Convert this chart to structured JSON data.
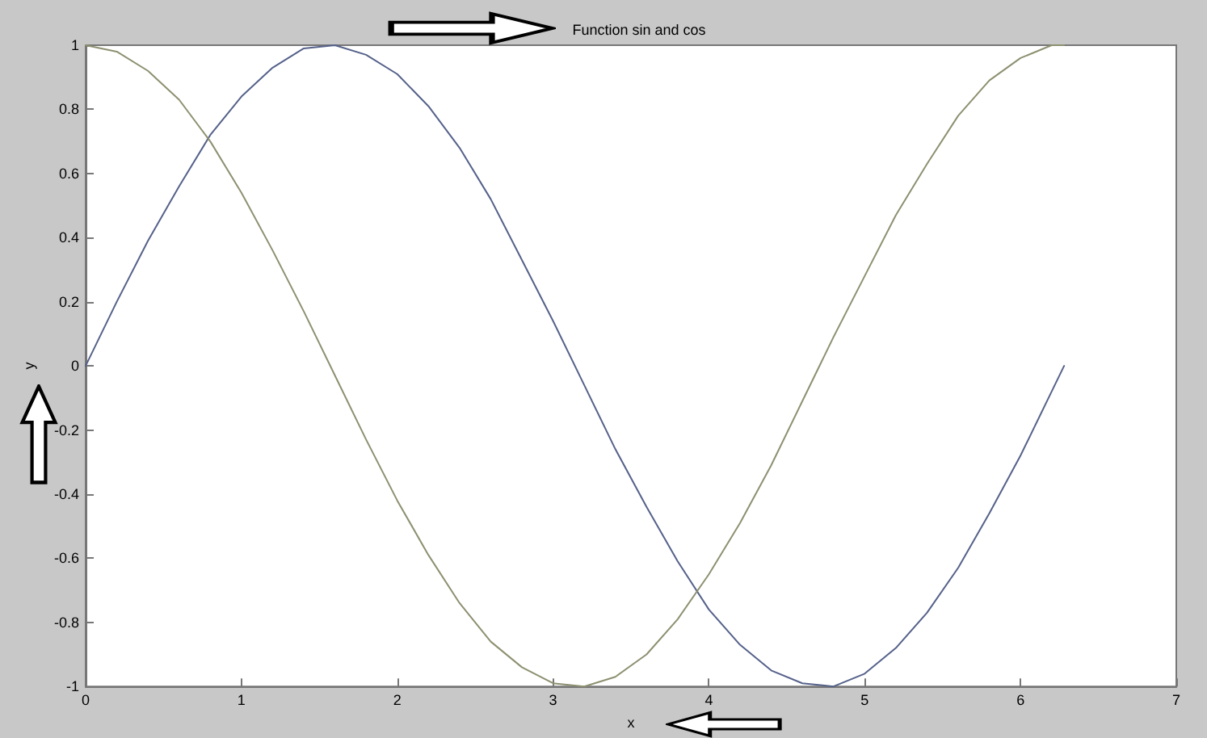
{
  "chart_data": {
    "type": "line",
    "title": "Function sin and cos",
    "xlabel": "x",
    "ylabel": "y",
    "x": [
      0,
      0.2,
      0.4,
      0.6,
      0.8,
      1.0,
      1.2,
      1.4,
      1.6,
      1.8,
      2.0,
      2.2,
      2.4,
      2.6,
      2.8,
      3.0,
      3.2,
      3.4,
      3.6,
      3.8,
      4.0,
      4.2,
      4.4,
      4.6,
      4.8,
      5.0,
      5.2,
      5.4,
      5.6,
      5.8,
      6.0,
      6.2,
      6.28
    ],
    "series": [
      {
        "color": "#55618a",
        "values": [
          0,
          0.2,
          0.39,
          0.56,
          0.72,
          0.84,
          0.93,
          0.99,
          1.0,
          0.97,
          0.91,
          0.81,
          0.68,
          0.52,
          0.33,
          0.14,
          -0.06,
          -0.26,
          -0.44,
          -0.61,
          -0.76,
          -0.87,
          -0.95,
          -0.99,
          -1.0,
          -0.96,
          -0.88,
          -0.77,
          -0.63,
          -0.46,
          -0.28,
          -0.08,
          0
        ]
      },
      {
        "color": "#8d9070",
        "values": [
          1,
          0.98,
          0.92,
          0.83,
          0.7,
          0.54,
          0.36,
          0.17,
          -0.03,
          -0.23,
          -0.42,
          -0.59,
          -0.74,
          -0.86,
          -0.94,
          -0.99,
          -1.0,
          -0.97,
          -0.9,
          -0.79,
          -0.65,
          -0.49,
          -0.31,
          -0.11,
          0.09,
          0.28,
          0.47,
          0.63,
          0.78,
          0.89,
          0.96,
          1.0,
          1.0
        ]
      }
    ],
    "xlim": [
      0,
      7
    ],
    "xticks": [
      0,
      1,
      2,
      3,
      4,
      5,
      6,
      7
    ],
    "ylim": [
      -1,
      1
    ],
    "yticks": [
      -1,
      -0.8,
      -0.6,
      -0.4,
      -0.2,
      0,
      0.2,
      0.4,
      0.6,
      0.8,
      1
    ],
    "grid": false,
    "marker": "none",
    "line_style": "solid"
  }
}
